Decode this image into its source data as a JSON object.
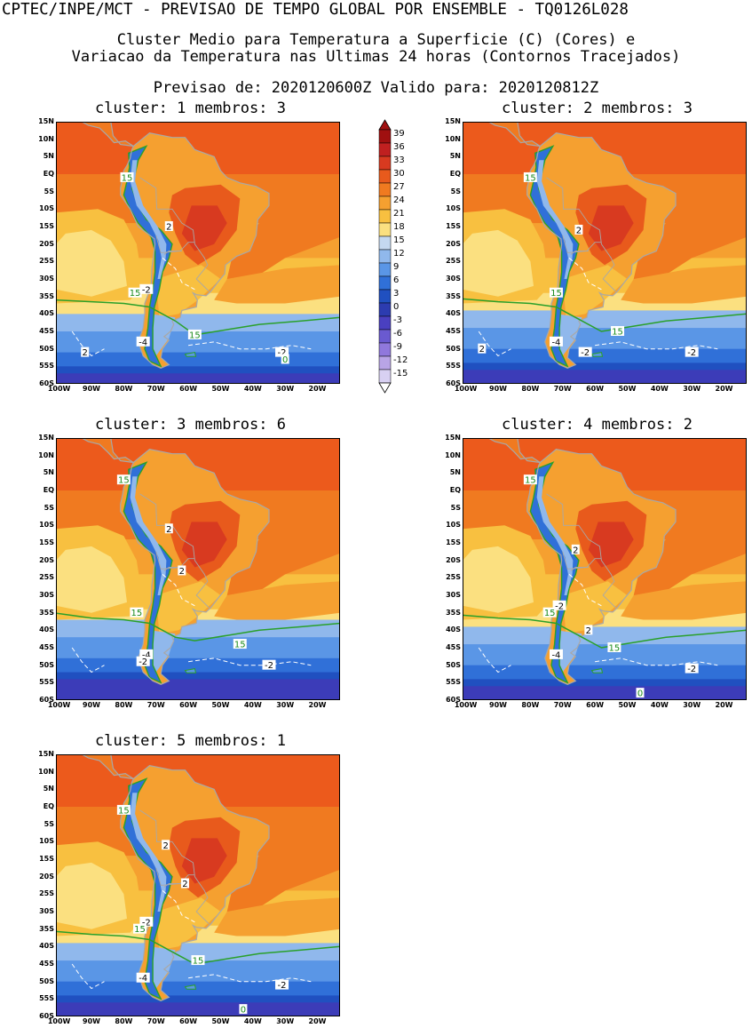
{
  "header": {
    "line1": "CPTEC/INPE/MCT - PREVISAO DE TEMPO GLOBAL POR ENSEMBLE - TQ0126L028",
    "line2": "Cluster Medio para Temperatura a Superficie (C) (Cores) e",
    "line3": "Variacao da Temperatura nas Ultimas 24 horas (Contornos Tracejados)",
    "line4": "Previsao de: 2020120600Z    Valido para: 2020120812Z"
  },
  "colorbar": {
    "labels": [
      "39",
      "36",
      "33",
      "30",
      "27",
      "24",
      "21",
      "18",
      "15",
      "12",
      "9",
      "6",
      "3",
      "0",
      "-3",
      "-6",
      "-9",
      "-12",
      "-15"
    ],
    "colors": [
      "#a01010",
      "#c02020",
      "#d83a20",
      "#e85a1c",
      "#f07a20",
      "#f5a030",
      "#f8c040",
      "#fbe080",
      "#c4d8f0",
      "#90b8ec",
      "#5a96e6",
      "#3070d8",
      "#2050c0",
      "#2c3cb0",
      "#4a40c0",
      "#6a5ad0",
      "#9078dc",
      "#b8a4e6",
      "#d8d0f2"
    ]
  },
  "axes": {
    "lat_labels": [
      "15N",
      "10N",
      "5N",
      "EQ",
      "5S",
      "10S",
      "15S",
      "20S",
      "25S",
      "30S",
      "35S",
      "40S",
      "45S",
      "50S",
      "55S",
      "60S"
    ],
    "lon_labels": [
      "100W",
      "90W",
      "80W",
      "70W",
      "60W",
      "50W",
      "40W",
      "30W",
      "20W"
    ]
  },
  "panels": [
    {
      "title": "cluster: 1   membros: 3",
      "labels": [
        {
          "t": "15",
          "lon": -79,
          "lat": -1
        },
        {
          "t": "2",
          "lon": -66,
          "lat": -15
        },
        {
          "t": "15",
          "lon": -76.5,
          "lat": -34
        },
        {
          "t": "-2",
          "lon": -73,
          "lat": -33
        },
        {
          "t": "15",
          "lon": -58,
          "lat": -46
        },
        {
          "t": "-4",
          "lon": -74,
          "lat": -48
        },
        {
          "t": "2",
          "lon": -92,
          "lat": -51
        },
        {
          "t": "-2",
          "lon": -31,
          "lat": -51
        },
        {
          "t": "0",
          "lon": -30,
          "lat": -53
        }
      ]
    },
    {
      "title": "cluster: 2   membros: 3",
      "labels": [
        {
          "t": "15",
          "lon": -80,
          "lat": -1
        },
        {
          "t": "2",
          "lon": -65,
          "lat": -16
        },
        {
          "t": "15",
          "lon": -72,
          "lat": -34
        },
        {
          "t": "-4",
          "lon": -72,
          "lat": -48
        },
        {
          "t": "15",
          "lon": -53,
          "lat": -45
        },
        {
          "t": "2",
          "lon": -95,
          "lat": -50
        },
        {
          "t": "-2",
          "lon": -63,
          "lat": -51
        },
        {
          "t": "-2",
          "lon": -30,
          "lat": -51
        }
      ]
    },
    {
      "title": "cluster: 3   membros: 6",
      "labels": [
        {
          "t": "15",
          "lon": -80,
          "lat": 3
        },
        {
          "t": "2",
          "lon": -66,
          "lat": -11
        },
        {
          "t": "2",
          "lon": -62,
          "lat": -23
        },
        {
          "t": "15",
          "lon": -76,
          "lat": -35
        },
        {
          "t": "15",
          "lon": -44,
          "lat": -44
        },
        {
          "t": "-4",
          "lon": -73,
          "lat": -47
        },
        {
          "t": "-2",
          "lon": -74,
          "lat": -49
        },
        {
          "t": "-2",
          "lon": -35,
          "lat": -50
        }
      ]
    },
    {
      "title": "cluster: 4   membros: 2",
      "labels": [
        {
          "t": "15",
          "lon": -80,
          "lat": 3
        },
        {
          "t": "2",
          "lon": -66,
          "lat": -17
        },
        {
          "t": "-2",
          "lon": -71,
          "lat": -33
        },
        {
          "t": "15",
          "lon": -74,
          "lat": -35
        },
        {
          "t": "2",
          "lon": -62,
          "lat": -40
        },
        {
          "t": "15",
          "lon": -54,
          "lat": -45
        },
        {
          "t": "-4",
          "lon": -72,
          "lat": -47
        },
        {
          "t": "-2",
          "lon": -30,
          "lat": -51
        },
        {
          "t": "0",
          "lon": -46,
          "lat": -58
        }
      ]
    },
    {
      "title": "cluster: 5   membros: 1",
      "labels": [
        {
          "t": "15",
          "lon": -80,
          "lat": -1
        },
        {
          "t": "2",
          "lon": -67,
          "lat": -11
        },
        {
          "t": "2",
          "lon": -61,
          "lat": -22
        },
        {
          "t": "-2",
          "lon": -73,
          "lat": -33
        },
        {
          "t": "15",
          "lon": -75,
          "lat": -35
        },
        {
          "t": "15",
          "lon": -57,
          "lat": -44
        },
        {
          "t": "-4",
          "lon": -74,
          "lat": -49
        },
        {
          "t": "-2",
          "lon": -31,
          "lat": -51
        },
        {
          "t": "0",
          "lon": -43,
          "lat": -58
        }
      ]
    }
  ]
}
